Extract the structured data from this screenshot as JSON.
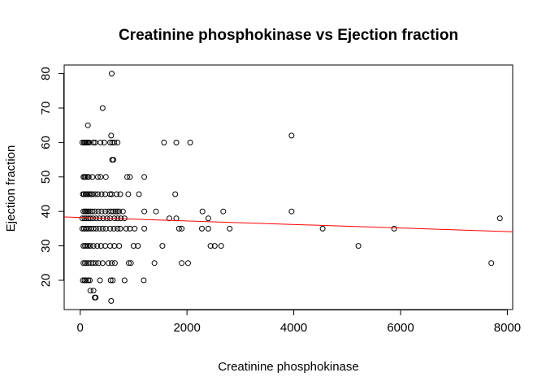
{
  "chart_data": {
    "type": "scatter",
    "title": "Creatinine phosphokinase vs Ejection fraction",
    "xlabel": "Creatinine phosphokinase",
    "ylabel": "Ejection fraction",
    "xlim": [
      -300,
      8100
    ],
    "ylim": [
      11.5,
      82.5
    ],
    "xticks": [
      0,
      2000,
      4000,
      6000,
      8000
    ],
    "yticks": [
      20,
      30,
      40,
      50,
      60,
      70,
      80
    ],
    "grid": false,
    "legend": "none",
    "point_color": "#000000",
    "trend_color": "#ff0000",
    "trendline": {
      "x": [
        -300,
        8100
      ],
      "y": [
        38.4,
        34.1
      ]
    },
    "points": [
      [
        590,
        80
      ],
      [
        420,
        70
      ],
      [
        145,
        65
      ],
      [
        580,
        62
      ],
      [
        3960,
        62
      ],
      [
        40,
        60
      ],
      [
        70,
        60
      ],
      [
        90,
        60
      ],
      [
        110,
        60
      ],
      [
        130,
        60
      ],
      [
        150,
        60
      ],
      [
        170,
        60
      ],
      [
        250,
        60
      ],
      [
        280,
        60
      ],
      [
        380,
        60
      ],
      [
        450,
        60
      ],
      [
        560,
        60
      ],
      [
        600,
        60
      ],
      [
        640,
        60
      ],
      [
        700,
        60
      ],
      [
        1570,
        60
      ],
      [
        1800,
        60
      ],
      [
        2060,
        60
      ],
      [
        600,
        55
      ],
      [
        620,
        55
      ],
      [
        60,
        50
      ],
      [
        80,
        50
      ],
      [
        100,
        50
      ],
      [
        130,
        50
      ],
      [
        160,
        50
      ],
      [
        230,
        50
      ],
      [
        330,
        50
      ],
      [
        380,
        50
      ],
      [
        480,
        50
      ],
      [
        880,
        50
      ],
      [
        930,
        50
      ],
      [
        1200,
        50
      ],
      [
        50,
        45
      ],
      [
        70,
        45
      ],
      [
        100,
        45
      ],
      [
        120,
        45
      ],
      [
        140,
        45
      ],
      [
        170,
        45
      ],
      [
        200,
        45
      ],
      [
        230,
        45
      ],
      [
        280,
        45
      ],
      [
        330,
        45
      ],
      [
        400,
        45
      ],
      [
        470,
        45
      ],
      [
        560,
        45
      ],
      [
        590,
        45
      ],
      [
        680,
        45
      ],
      [
        750,
        45
      ],
      [
        900,
        45
      ],
      [
        1100,
        45
      ],
      [
        1780,
        45
      ],
      [
        60,
        40
      ],
      [
        90,
        40
      ],
      [
        110,
        40
      ],
      [
        130,
        40
      ],
      [
        160,
        40
      ],
      [
        190,
        40
      ],
      [
        230,
        40
      ],
      [
        280,
        40
      ],
      [
        340,
        40
      ],
      [
        400,
        40
      ],
      [
        470,
        40
      ],
      [
        530,
        40
      ],
      [
        580,
        40
      ],
      [
        620,
        40
      ],
      [
        660,
        40
      ],
      [
        690,
        40
      ],
      [
        730,
        40
      ],
      [
        800,
        40
      ],
      [
        1200,
        40
      ],
      [
        1420,
        40
      ],
      [
        2290,
        40
      ],
      [
        2680,
        40
      ],
      [
        3960,
        40
      ],
      [
        40,
        38
      ],
      [
        80,
        38
      ],
      [
        110,
        38
      ],
      [
        150,
        38
      ],
      [
        190,
        38
      ],
      [
        240,
        38
      ],
      [
        300,
        38
      ],
      [
        360,
        38
      ],
      [
        430,
        38
      ],
      [
        500,
        38
      ],
      [
        560,
        38
      ],
      [
        640,
        38
      ],
      [
        700,
        38
      ],
      [
        760,
        38
      ],
      [
        830,
        38
      ],
      [
        1670,
        38
      ],
      [
        1800,
        38
      ],
      [
        2400,
        38
      ],
      [
        7860,
        38
      ],
      [
        40,
        35
      ],
      [
        70,
        35
      ],
      [
        100,
        35
      ],
      [
        130,
        35
      ],
      [
        160,
        35
      ],
      [
        200,
        35
      ],
      [
        250,
        35
      ],
      [
        300,
        35
      ],
      [
        360,
        35
      ],
      [
        420,
        35
      ],
      [
        480,
        35
      ],
      [
        560,
        35
      ],
      [
        630,
        35
      ],
      [
        700,
        35
      ],
      [
        750,
        35
      ],
      [
        860,
        35
      ],
      [
        930,
        35
      ],
      [
        1020,
        35
      ],
      [
        1200,
        35
      ],
      [
        1850,
        35
      ],
      [
        1900,
        35
      ],
      [
        2280,
        35
      ],
      [
        2400,
        35
      ],
      [
        2800,
        35
      ],
      [
        4540,
        35
      ],
      [
        5880,
        35
      ],
      [
        60,
        30
      ],
      [
        90,
        30
      ],
      [
        120,
        30
      ],
      [
        150,
        30
      ],
      [
        190,
        30
      ],
      [
        250,
        30
      ],
      [
        320,
        30
      ],
      [
        390,
        30
      ],
      [
        470,
        30
      ],
      [
        560,
        30
      ],
      [
        640,
        30
      ],
      [
        730,
        30
      ],
      [
        1000,
        30
      ],
      [
        1080,
        30
      ],
      [
        1540,
        30
      ],
      [
        2440,
        30
      ],
      [
        2520,
        30
      ],
      [
        2640,
        30
      ],
      [
        5210,
        30
      ],
      [
        60,
        25
      ],
      [
        90,
        25
      ],
      [
        120,
        25
      ],
      [
        160,
        25
      ],
      [
        200,
        25
      ],
      [
        240,
        25
      ],
      [
        290,
        25
      ],
      [
        340,
        25
      ],
      [
        420,
        25
      ],
      [
        530,
        25
      ],
      [
        590,
        25
      ],
      [
        650,
        25
      ],
      [
        910,
        25
      ],
      [
        950,
        25
      ],
      [
        1390,
        25
      ],
      [
        1900,
        25
      ],
      [
        2020,
        25
      ],
      [
        7700,
        25
      ],
      [
        50,
        20
      ],
      [
        80,
        20
      ],
      [
        110,
        20
      ],
      [
        150,
        20
      ],
      [
        180,
        20
      ],
      [
        370,
        20
      ],
      [
        570,
        20
      ],
      [
        610,
        20
      ],
      [
        830,
        20
      ],
      [
        1190,
        20
      ],
      [
        190,
        17
      ],
      [
        250,
        17
      ],
      [
        270,
        15
      ],
      [
        290,
        15
      ],
      [
        580,
        14
      ]
    ]
  }
}
